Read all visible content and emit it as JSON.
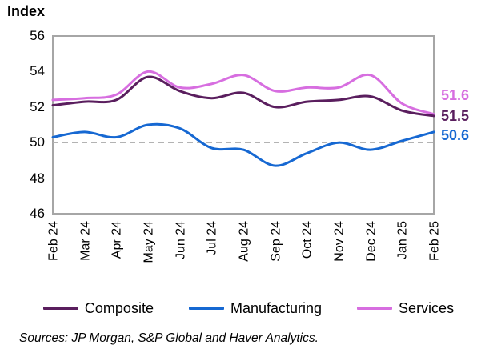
{
  "header": {
    "title": "Index"
  },
  "chart_data": {
    "type": "line",
    "title": "Index",
    "x": [
      "Feb 24",
      "Mar 24",
      "Apr 24",
      "May 24",
      "Jun 24",
      "Jul 24",
      "Aug 24",
      "Sep 24",
      "Oct 24",
      "Nov 24",
      "Dec 24",
      "Jan 25",
      "Feb 25"
    ],
    "series": [
      {
        "name": "Composite",
        "color": "#5A1E5E",
        "values": [
          52.1,
          52.3,
          52.4,
          53.7,
          52.9,
          52.5,
          52.8,
          52.0,
          52.3,
          52.4,
          52.6,
          51.8,
          51.5
        ],
        "end_label": "51.5"
      },
      {
        "name": "Manufacturing",
        "color": "#1668D2",
        "values": [
          50.3,
          50.6,
          50.3,
          51.0,
          50.8,
          49.7,
          49.6,
          48.7,
          49.4,
          50.0,
          49.6,
          50.1,
          50.6
        ],
        "end_label": "50.6"
      },
      {
        "name": "Services",
        "color": "#D76EE0",
        "values": [
          52.4,
          52.5,
          52.7,
          54.0,
          53.1,
          53.3,
          53.8,
          52.9,
          53.1,
          53.1,
          53.8,
          52.2,
          51.6
        ],
        "end_label": "51.6"
      }
    ],
    "ylim": [
      46,
      56
    ],
    "yticks": [
      56,
      54,
      52,
      50,
      48,
      46
    ],
    "reference_line": 50,
    "grid": false,
    "legend_position": "bottom"
  },
  "footer": {
    "sources": "Sources: JP Morgan, S&P Global and Haver Analytics."
  },
  "colors": {
    "axis_frame": "#A6A6A6",
    "reference_line": "#B3B3B3",
    "text": "#000000"
  }
}
